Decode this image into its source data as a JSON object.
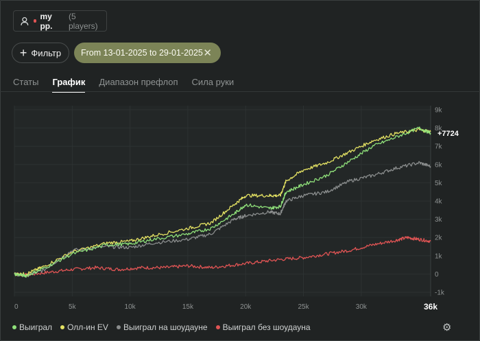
{
  "player": {
    "name": "my pp.",
    "count_label": "(5 players)"
  },
  "filter": {
    "label": "Фильтр"
  },
  "date_chip": {
    "label": "From 13-01-2025 to 29-01-2025"
  },
  "tabs": [
    {
      "label": "Статы",
      "active": false
    },
    {
      "label": "График",
      "active": true
    },
    {
      "label": "Диапазон префлоп",
      "active": false
    },
    {
      "label": "Сила руки",
      "active": false
    }
  ],
  "chart_data": {
    "type": "line",
    "x_ticks": [
      "0",
      "5k",
      "10k",
      "15k",
      "20k",
      "25k",
      "30k"
    ],
    "x_end_label": "36k",
    "y_ticks": [
      "-1k",
      "0",
      "1k",
      "2k",
      "3k",
      "4k",
      "5k",
      "6k",
      "7k",
      "8k",
      "9k"
    ],
    "xlim": [
      0,
      36000
    ],
    "ylim": [
      -1000,
      9000
    ],
    "end_label": "+7724",
    "series": [
      {
        "name": "Выиграл",
        "color": "#8fe07a",
        "points": [
          [
            0,
            0
          ],
          [
            1000,
            -100
          ],
          [
            2500,
            300
          ],
          [
            5000,
            1100
          ],
          [
            8000,
            1600
          ],
          [
            10000,
            1650
          ],
          [
            12000,
            1900
          ],
          [
            15000,
            2200
          ],
          [
            17000,
            2500
          ],
          [
            19000,
            3300
          ],
          [
            20000,
            3800
          ],
          [
            22000,
            3600
          ],
          [
            23000,
            3700
          ],
          [
            23500,
            4500
          ],
          [
            25000,
            4900
          ],
          [
            27000,
            5400
          ],
          [
            29000,
            6200
          ],
          [
            31000,
            7000
          ],
          [
            33000,
            7500
          ],
          [
            35000,
            8000
          ],
          [
            36000,
            7724
          ]
        ]
      },
      {
        "name": "Олл-ин EV",
        "color": "#e4e263",
        "points": [
          [
            0,
            0
          ],
          [
            1000,
            0
          ],
          [
            2500,
            400
          ],
          [
            5000,
            1200
          ],
          [
            8000,
            1700
          ],
          [
            10000,
            1800
          ],
          [
            12000,
            2100
          ],
          [
            15000,
            2500
          ],
          [
            17000,
            2800
          ],
          [
            19000,
            3800
          ],
          [
            20000,
            4300
          ],
          [
            22000,
            4300
          ],
          [
            23000,
            4300
          ],
          [
            23500,
            5100
          ],
          [
            25000,
            5700
          ],
          [
            27000,
            6100
          ],
          [
            29000,
            6700
          ],
          [
            31000,
            7300
          ],
          [
            33000,
            7700
          ],
          [
            35000,
            7900
          ],
          [
            36000,
            7800
          ]
        ]
      },
      {
        "name": "Выиграл на шоудауне",
        "color": "#8a8d8d",
        "points": [
          [
            0,
            0
          ],
          [
            1000,
            -100
          ],
          [
            2500,
            200
          ],
          [
            5000,
            1300
          ],
          [
            8000,
            1500
          ],
          [
            10000,
            1450
          ],
          [
            12000,
            1700
          ],
          [
            15000,
            1900
          ],
          [
            17000,
            2200
          ],
          [
            19000,
            3000
          ],
          [
            20000,
            3200
          ],
          [
            22000,
            3400
          ],
          [
            23000,
            3300
          ],
          [
            23500,
            4000
          ],
          [
            25000,
            4300
          ],
          [
            27000,
            4500
          ],
          [
            29000,
            5100
          ],
          [
            31000,
            5400
          ],
          [
            33000,
            5800
          ],
          [
            35000,
            6100
          ],
          [
            36000,
            5900
          ]
        ]
      },
      {
        "name": "Выиграл без шоудауна",
        "color": "#e05454",
        "points": [
          [
            0,
            0
          ],
          [
            1000,
            -50
          ],
          [
            3000,
            100
          ],
          [
            5000,
            250
          ],
          [
            7000,
            350
          ],
          [
            9000,
            250
          ],
          [
            11000,
            350
          ],
          [
            13000,
            350
          ],
          [
            15000,
            450
          ],
          [
            17000,
            350
          ],
          [
            19000,
            500
          ],
          [
            21000,
            650
          ],
          [
            23000,
            800
          ],
          [
            25000,
            900
          ],
          [
            27000,
            1100
          ],
          [
            29000,
            1300
          ],
          [
            31000,
            1600
          ],
          [
            33000,
            1850
          ],
          [
            34000,
            2000
          ],
          [
            35000,
            1900
          ],
          [
            36000,
            1800
          ]
        ]
      }
    ]
  },
  "settings_icon": "gear-icon"
}
